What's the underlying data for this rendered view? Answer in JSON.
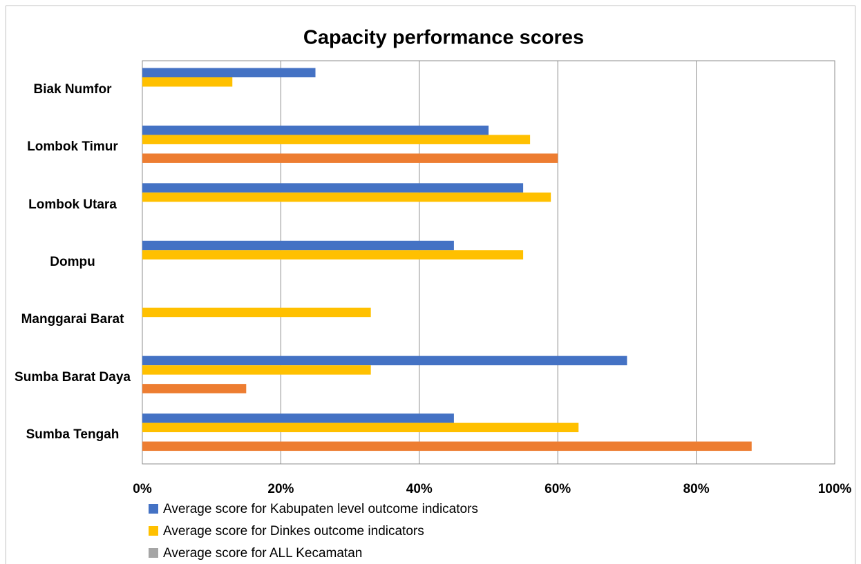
{
  "chart_data": {
    "type": "hbar",
    "title": "Capacity performance scores",
    "categories": [
      "Biak Numfor",
      "Lombok Timur",
      "Lombok Utara",
      "Dompu",
      "Manggarai Barat",
      "Sumba Barat Daya",
      "Sumba Tengah"
    ],
    "series": [
      {
        "name": "Average score for Kabupaten level outcome indicators",
        "color": "#4472c4",
        "values": [
          25,
          50,
          55,
          45,
          null,
          70,
          45
        ]
      },
      {
        "name": "Average score for Dinkes outcome indicators",
        "color": "#ffc000",
        "values": [
          13,
          56,
          59,
          55,
          33,
          33,
          63
        ]
      },
      {
        "name": "Average score for ALL Kecamatan",
        "color": "#a5a5a5",
        "values": [
          null,
          null,
          null,
          null,
          null,
          null,
          null
        ]
      },
      {
        "color": "#ed7d31",
        "values": [
          null,
          60,
          null,
          null,
          null,
          15,
          88
        ]
      }
    ],
    "xlim": [
      0,
      100
    ],
    "xticks": [
      {
        "value": 0,
        "label": "0%"
      },
      {
        "value": 20,
        "label": "20%"
      },
      {
        "value": 40,
        "label": "40%"
      },
      {
        "value": 60,
        "label": "60%"
      },
      {
        "value": 80,
        "label": "80%"
      },
      {
        "value": 100,
        "label": "100%"
      }
    ],
    "grid": true
  }
}
